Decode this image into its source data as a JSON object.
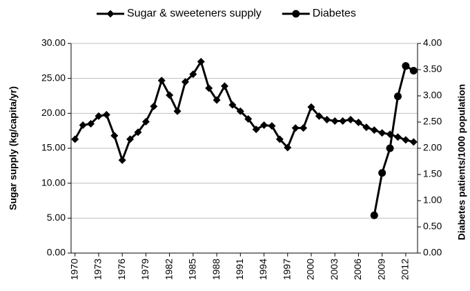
{
  "chart_data": {
    "type": "line",
    "x": [
      1970,
      1971,
      1972,
      1973,
      1974,
      1975,
      1976,
      1977,
      1978,
      1979,
      1980,
      1981,
      1982,
      1983,
      1984,
      1985,
      1986,
      1987,
      1988,
      1989,
      1990,
      1991,
      1992,
      1993,
      1994,
      1995,
      1996,
      1997,
      1998,
      1999,
      2000,
      2001,
      2002,
      2003,
      2004,
      2005,
      2006,
      2007,
      2008,
      2009,
      2010,
      2011,
      2012,
      2013
    ],
    "series": [
      {
        "name": "Sugar & sweeteners supply",
        "color": "#000000",
        "marker": "diamond",
        "values": [
          16.3,
          18.3,
          18.5,
          19.6,
          19.8,
          16.8,
          13.3,
          16.3,
          17.3,
          18.8,
          21.0,
          24.7,
          22.6,
          20.3,
          24.5,
          25.6,
          27.4,
          23.6,
          21.9,
          23.9,
          21.2,
          20.3,
          19.2,
          17.7,
          18.3,
          18.2,
          16.3,
          15.1,
          17.9,
          17.9,
          20.9,
          19.6,
          19.1,
          18.9,
          18.9,
          19.1,
          18.7,
          18.0,
          17.6,
          17.2,
          17.0,
          16.6,
          16.2,
          15.9
        ]
      },
      {
        "name": "Diabetes",
        "color": "#000000",
        "marker": "circle",
        "axis": "y2",
        "values": [
          null,
          null,
          null,
          null,
          null,
          null,
          null,
          null,
          null,
          null,
          null,
          null,
          null,
          null,
          null,
          null,
          null,
          null,
          null,
          null,
          null,
          null,
          null,
          null,
          null,
          null,
          null,
          null,
          null,
          null,
          null,
          null,
          null,
          null,
          null,
          null,
          null,
          null,
          0.72,
          1.53,
          2.0,
          2.99,
          3.57,
          3.48
        ]
      }
    ],
    "ylabel": "Sugar supply (kg/capita/yr)",
    "y2label": "Diabetes patients/1000 population",
    "xlim": [
      1969.5,
      2013.5
    ],
    "xticks": [
      1970,
      1973,
      1976,
      1979,
      1982,
      1985,
      1988,
      1991,
      1994,
      1997,
      2000,
      2003,
      2006,
      2009,
      2012
    ],
    "ylim": [
      0,
      30
    ],
    "yticks": [
      {
        "value": 0,
        "label": "0.00"
      },
      {
        "value": 5,
        "label": "5.00"
      },
      {
        "value": 10,
        "label": "10.00"
      },
      {
        "value": 15,
        "label": "15.00"
      },
      {
        "value": 20,
        "label": "20.00"
      },
      {
        "value": 25,
        "label": "25.00"
      },
      {
        "value": 30,
        "label": "30.00"
      }
    ],
    "y2lim": [
      0,
      4
    ],
    "y2ticks": [
      {
        "value": 0,
        "label": "0.00"
      },
      {
        "value": 0.5,
        "label": "0.50"
      },
      {
        "value": 1,
        "label": "1.00"
      },
      {
        "value": 1.5,
        "label": "1.50"
      },
      {
        "value": 2,
        "label": "2.00"
      },
      {
        "value": 2.5,
        "label": "2.50"
      },
      {
        "value": 3,
        "label": "3.00"
      },
      {
        "value": 3.5,
        "label": "3.50"
      },
      {
        "value": 4,
        "label": "4.00"
      }
    ],
    "grid": true,
    "legend": "top"
  }
}
